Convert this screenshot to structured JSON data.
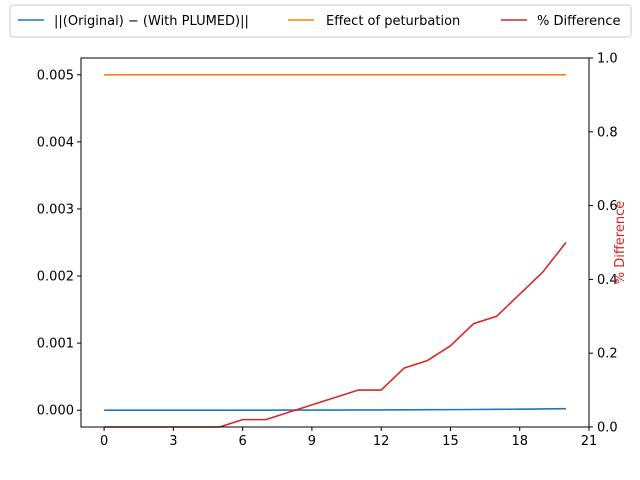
{
  "chart_data": {
    "type": "line",
    "x": [
      0,
      1,
      2,
      3,
      4,
      5,
      6,
      7,
      8,
      9,
      10,
      11,
      12,
      13,
      14,
      15,
      16,
      17,
      18,
      19,
      20
    ],
    "xlim": [
      -1,
      21
    ],
    "xticks": [
      0,
      3,
      6,
      9,
      12,
      15,
      18,
      21
    ],
    "y_left": {
      "ylim": [
        -0.00025,
        0.00525
      ],
      "ticks": [
        0.0,
        0.001,
        0.002,
        0.003,
        0.004,
        0.005
      ],
      "tick_labels": [
        "0.000",
        "0.001",
        "0.002",
        "0.003",
        "0.004",
        "0.005"
      ]
    },
    "y_right": {
      "label": "% Difference",
      "label_color": "#d62728",
      "ylim": [
        0,
        1.0
      ],
      "ticks": [
        0,
        0.2,
        0.4,
        0.6,
        0.8,
        1.0
      ],
      "tick_labels": [
        "0.0",
        "0.2",
        "0.4",
        "0.6",
        "0.8",
        "1.0"
      ]
    },
    "series": [
      {
        "name": "||(Original) − (With PLUMED)||",
        "axis": "left",
        "color": "#1f77b4",
        "values": [
          0.0,
          0.0,
          0.0,
          0.0,
          0.0,
          0.0,
          1e-06,
          1e-06,
          2e-06,
          2e-06,
          3e-06,
          4e-06,
          5e-06,
          6e-06,
          8e-06,
          9e-06,
          1.1e-05,
          1.3e-05,
          1.6e-05,
          1.9e-05,
          2.3e-05
        ]
      },
      {
        "name": "Effect of peturbation",
        "axis": "left",
        "color": "#ff7f0e",
        "values": [
          0.005,
          0.005,
          0.005,
          0.005,
          0.005,
          0.005,
          0.005,
          0.005,
          0.005,
          0.005,
          0.005,
          0.005,
          0.005,
          0.005,
          0.005,
          0.005,
          0.005,
          0.005,
          0.005,
          0.005,
          0.005
        ]
      },
      {
        "name": "% Difference",
        "axis": "right",
        "color": "#d62728",
        "values": [
          0,
          0,
          0,
          0,
          0,
          0,
          0.02,
          0.02,
          0.04,
          0.06,
          0.08,
          0.1,
          0.1,
          0.16,
          0.18,
          0.22,
          0.28,
          0.3,
          0.36,
          0.42,
          0.5
        ]
      }
    ],
    "legend": {
      "placement": "top",
      "columns": 3
    },
    "grid": false
  }
}
